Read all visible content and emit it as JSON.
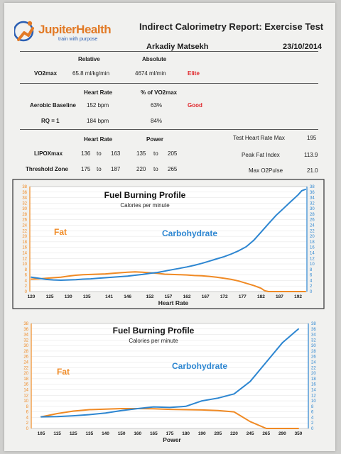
{
  "header": {
    "logo_text": "JupiterHealth",
    "logo_tagline": "train with purpose",
    "report_title": "Indirect Calorimetry Report: Exercise Test",
    "athlete_name": "Arkadiy Matsekh",
    "date": "23/10/2014"
  },
  "vo2": {
    "col_relative": "Relative",
    "col_absolute": "Absolute",
    "label": "VO2max",
    "relative": "65.8 ml/kg/min",
    "absolute": "4674 ml/min",
    "rating": "Elite"
  },
  "aerobic": {
    "col_hr": "Heart Rate",
    "col_pct": "% of VO2max",
    "baseline_label": "Aerobic Baseline",
    "baseline_hr": "152 bpm",
    "baseline_pct": "63%",
    "baseline_rating": "Good",
    "rq_label": "RQ = 1",
    "rq_hr": "184 bpm",
    "rq_pct": "84%"
  },
  "zones": {
    "col_hr": "Heart Rate",
    "col_power": "Power",
    "lipox_label": "LIPOXmax",
    "lipox_hr_lo": "136",
    "lipox_to1": "to",
    "lipox_hr_hi": "163",
    "lipox_pw_lo": "135",
    "lipox_to2": "to",
    "lipox_pw_hi": "205",
    "thr_label": "Threshold Zone",
    "thr_hr_lo": "175",
    "thr_to1": "to",
    "thr_hr_hi": "187",
    "thr_pw_lo": "220",
    "thr_to2": "to",
    "thr_pw_hi": "265"
  },
  "stats": [
    {
      "label": "Test Heart Rate Max",
      "value": "195"
    },
    {
      "label": "Peak Fat Index",
      "value": "113.9"
    },
    {
      "label": "Max O2Pulse",
      "value": "21.0"
    }
  ],
  "colors": {
    "fat": "#f08a24",
    "carb": "#2d86d1"
  },
  "chart_data": [
    {
      "type": "line",
      "title": "Fuel Burning Profile",
      "subtitle": "Calories per minute",
      "xlabel": "Heart Rate",
      "x_ticks": [
        "120",
        "125",
        "130",
        "135",
        "141",
        "146",
        "152",
        "157",
        "162",
        "167",
        "172",
        "177",
        "182",
        "187",
        "192"
      ],
      "xlim": [
        120,
        194
      ],
      "ylim": [
        0,
        38
      ],
      "y_ticks": [
        "0",
        "2",
        "4",
        "6",
        "8",
        "10",
        "12",
        "14",
        "16",
        "18",
        "20",
        "22",
        "24",
        "26",
        "28",
        "30",
        "32",
        "34",
        "36",
        "38"
      ],
      "annotations": [
        "Fat",
        "Carbohydrate"
      ],
      "series": [
        {
          "name": "Fat",
          "color": "#f08a24",
          "x": [
            120,
            122,
            124,
            126,
            128,
            130,
            132,
            134,
            136,
            138,
            140,
            142,
            144,
            146,
            148,
            150,
            152,
            154,
            156,
            158,
            160,
            162,
            164,
            166,
            168,
            170,
            172,
            174,
            176,
            178,
            180,
            182,
            183,
            184,
            186,
            188,
            190,
            192,
            194
          ],
          "y": [
            4.5,
            4.6,
            4.8,
            5,
            5.2,
            5.6,
            5.9,
            6.1,
            6.2,
            6.3,
            6.4,
            6.6,
            6.8,
            7,
            7.1,
            7,
            6.8,
            6.6,
            6.3,
            6.2,
            6.1,
            6,
            5.8,
            5.7,
            5.5,
            5.2,
            4.8,
            4.4,
            3.8,
            3,
            2.2,
            1.2,
            0.3,
            0,
            0,
            0,
            0,
            0,
            0
          ]
        },
        {
          "name": "Carbohydrate",
          "color": "#2d86d1",
          "x": [
            120,
            122,
            124,
            126,
            128,
            130,
            132,
            134,
            136,
            138,
            140,
            142,
            144,
            146,
            148,
            150,
            152,
            154,
            156,
            158,
            160,
            162,
            164,
            166,
            168,
            170,
            172,
            174,
            176,
            178,
            180,
            182,
            184,
            186,
            188,
            190,
            192,
            193,
            194
          ],
          "y": [
            5.2,
            4.8,
            4.4,
            4.2,
            4.1,
            4.2,
            4.3,
            4.5,
            4.6,
            4.8,
            5,
            5.2,
            5.4,
            5.6,
            5.9,
            6.2,
            6.6,
            6.9,
            7.4,
            7.9,
            8.4,
            8.9,
            9.5,
            10.2,
            11,
            11.8,
            12.6,
            13.6,
            14.8,
            16.2,
            18.5,
            21.5,
            24.5,
            27.5,
            30,
            32.5,
            35,
            36.5,
            37
          ]
        }
      ]
    },
    {
      "type": "line",
      "title": "Fuel Burning Profile",
      "subtitle": "Calories per minute",
      "xlabel": "Power",
      "x_ticks": [
        "105",
        "115",
        "125",
        "135",
        "140",
        "150",
        "160",
        "165",
        "175",
        "180",
        "190",
        "205",
        "220",
        "245",
        "265",
        "290",
        "350"
      ],
      "ylim": [
        0,
        38
      ],
      "y_ticks": [
        "0",
        "2",
        "4",
        "6",
        "8",
        "10",
        "12",
        "14",
        "16",
        "18",
        "20",
        "22",
        "24",
        "26",
        "28",
        "30",
        "32",
        "34",
        "36",
        "38"
      ],
      "annotations": [
        "Fat",
        "Carbohydrate"
      ],
      "series": [
        {
          "name": "Fat",
          "color": "#f08a24",
          "x": [
            "105",
            "115",
            "125",
            "135",
            "140",
            "150",
            "160",
            "165",
            "175",
            "180",
            "190",
            "205",
            "220",
            "245",
            "265",
            "290",
            "350"
          ],
          "y": [
            4.2,
            5.4,
            6.3,
            6.8,
            7,
            7.2,
            7.2,
            7.1,
            6.9,
            6.8,
            6.7,
            6.5,
            6,
            2.5,
            0,
            0,
            0
          ]
        },
        {
          "name": "Carbohydrate",
          "color": "#2d86d1",
          "x": [
            "105",
            "115",
            "125",
            "135",
            "140",
            "150",
            "160",
            "165",
            "175",
            "180",
            "190",
            "205",
            "220",
            "245",
            "265",
            "290",
            "350"
          ],
          "y": [
            4.2,
            4.3,
            4.6,
            5,
            5.6,
            6.5,
            7.2,
            7.8,
            7.6,
            8,
            10,
            11,
            12.5,
            17,
            24,
            31,
            36
          ]
        }
      ]
    }
  ]
}
